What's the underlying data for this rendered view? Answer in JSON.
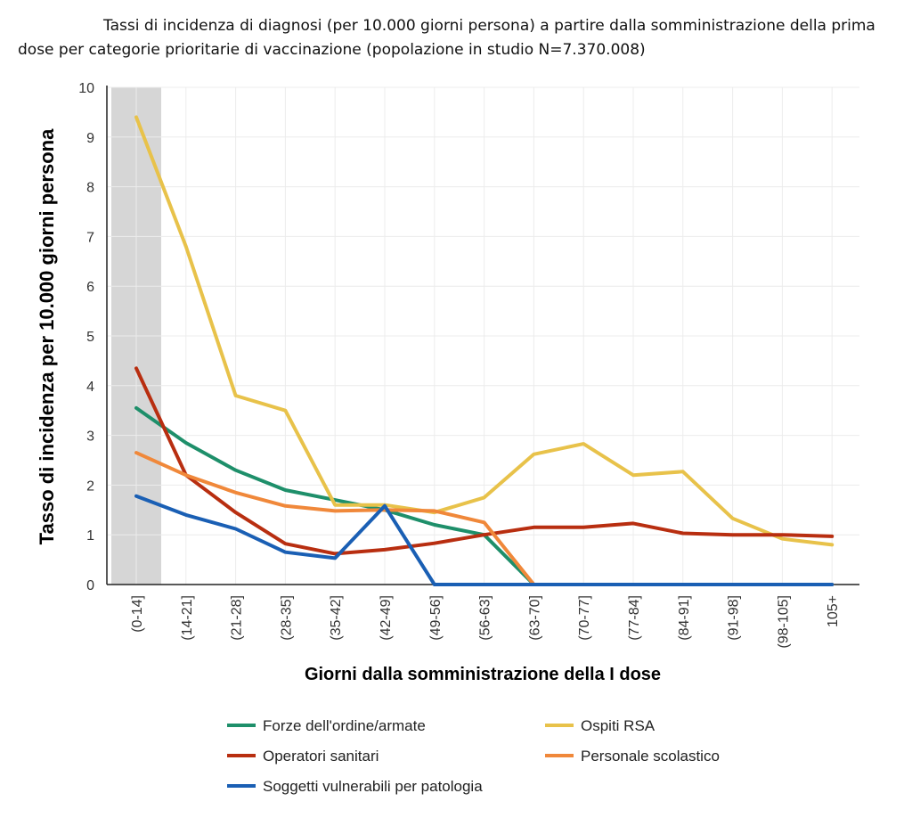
{
  "title": "Tassi di incidenza di diagnosi (per 10.000 giorni persona) a partire dalla somministrazione della prima dose per categorie prioritarie di vaccinazione (popolazione in studio N=7.370.008)",
  "chart_data": {
    "type": "line",
    "title": "Tassi di incidenza di diagnosi (per 10.000 giorni persona) a partire dalla somministrazione della prima dose per categorie prioritarie di vaccinazione (popolazione in studio N=7.370.008)",
    "xlabel": "Giorni dalla somministrazione della I dose",
    "ylabel": "Tasso di incidenza per 10.000 giorni persona",
    "ylim": [
      0,
      10
    ],
    "yticks": [
      0,
      1,
      2,
      3,
      4,
      5,
      6,
      7,
      8,
      9,
      10
    ],
    "grid": true,
    "highlighted_category": "(0-14]",
    "legend_position": "bottom",
    "categories": [
      "(0-14]",
      "(14-21]",
      "(21-28]",
      "(28-35]",
      "(35-42]",
      "(42-49]",
      "(49-56]",
      "(56-63]",
      "(63-70]",
      "(70-77]",
      "(77-84]",
      "(84-91]",
      "(91-98]",
      "(98-105]",
      "105+"
    ],
    "series": [
      {
        "name": "Forze dell'ordine/armate",
        "color": "#1e8f6a",
        "values": [
          3.55,
          2.85,
          2.3,
          1.9,
          1.7,
          1.5,
          1.2,
          1.0,
          0,
          0,
          0,
          0,
          0,
          0,
          0
        ]
      },
      {
        "name": "Ospiti RSA",
        "color": "#e8c24a",
        "values": [
          9.4,
          6.8,
          3.8,
          3.5,
          1.6,
          1.6,
          1.45,
          1.75,
          2.62,
          2.83,
          2.2,
          2.27,
          1.33,
          0.92,
          0.8
        ]
      },
      {
        "name": "Operatori sanitari",
        "color": "#b82e10",
        "values": [
          4.35,
          2.2,
          1.45,
          0.82,
          0.62,
          0.7,
          0.83,
          1.0,
          1.15,
          1.15,
          1.23,
          1.03,
          1.0,
          1.0,
          0.97
        ]
      },
      {
        "name": "Personale scolastico",
        "color": "#f0883a",
        "values": [
          2.65,
          2.2,
          1.85,
          1.58,
          1.48,
          1.5,
          1.48,
          1.25,
          0,
          0,
          0,
          0,
          0,
          0,
          0
        ]
      },
      {
        "name": "Soggetti vulnerabili per patologia",
        "color": "#1a5fb4",
        "values": [
          1.78,
          1.4,
          1.12,
          0.65,
          0.53,
          1.58,
          0,
          0,
          0,
          0,
          0,
          0,
          0,
          0,
          0
        ]
      }
    ]
  }
}
